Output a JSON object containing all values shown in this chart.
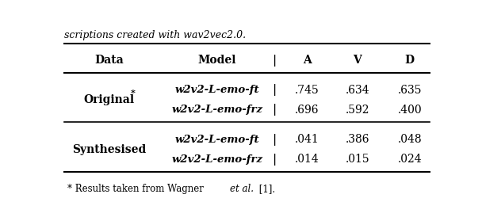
{
  "caption": "scriptions created with wav2vec2.0.",
  "col_headers": [
    "Data",
    "Model",
    "A",
    "V",
    "D"
  ],
  "rows": [
    [
      "Original*",
      "w2v2-L-emo-ft",
      ".745",
      ".634",
      ".635"
    ],
    [
      "",
      "w2v2-L-emo-frz",
      ".696",
      ".592",
      ".400"
    ],
    [
      "Synthesised",
      "w2v2-L-emo-ft",
      ".041",
      ".386",
      ".048"
    ],
    [
      "",
      "w2v2-L-emo-frz",
      ".014",
      ".015",
      ".024"
    ]
  ],
  "footnote": "* Results taken from Wagner et al. [1].",
  "background": "#ffffff",
  "text_color": "#000000"
}
